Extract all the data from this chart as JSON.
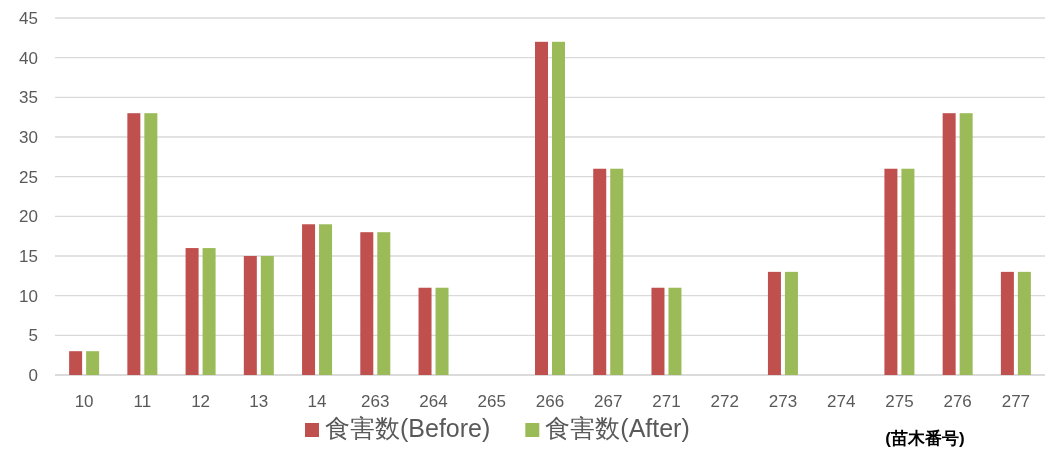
{
  "chart_data": {
    "type": "bar",
    "categories": [
      "10",
      "11",
      "12",
      "13",
      "14",
      "263",
      "264",
      "265",
      "266",
      "267",
      "271",
      "272",
      "273",
      "274",
      "275",
      "276",
      "277"
    ],
    "series": [
      {
        "name": "食害数(Before)",
        "color": "#c0504d",
        "values": [
          3,
          33,
          16,
          15,
          19,
          18,
          11,
          0,
          42,
          26,
          11,
          0,
          13,
          0,
          26,
          33,
          13
        ]
      },
      {
        "name": "食害数(After)",
        "color": "#9bbb59",
        "values": [
          3,
          33,
          16,
          15,
          19,
          18,
          11,
          0,
          42,
          26,
          11,
          0,
          13,
          0,
          26,
          33,
          13
        ]
      }
    ],
    "xlabel": "(苗木番号)",
    "ylim": [
      0,
      45
    ],
    "yticks": [
      0,
      5,
      10,
      15,
      20,
      25,
      30,
      35,
      40,
      45
    ],
    "grid": "y",
    "legend": "bottom"
  }
}
